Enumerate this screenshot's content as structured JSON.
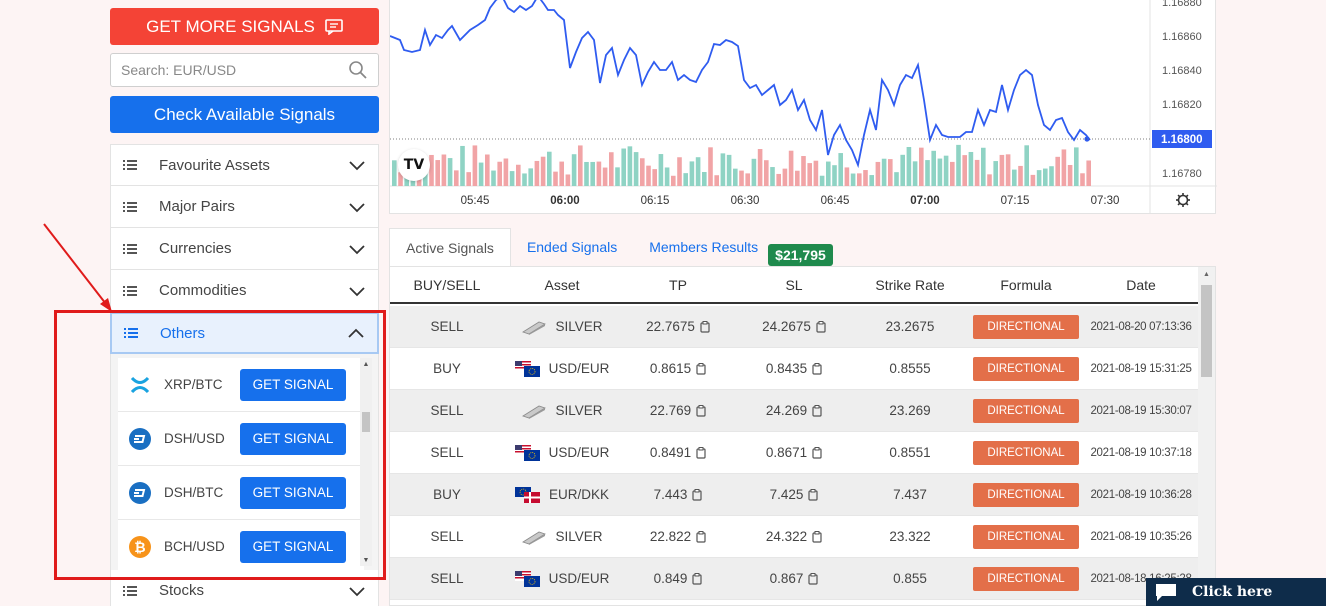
{
  "sidebar": {
    "get_more_label": "GET MORE SIGNALS",
    "search_placeholder": "Search: EUR/USD",
    "check_label": "Check Available Signals",
    "categories": [
      {
        "label": "Favourite Assets"
      },
      {
        "label": "Major Pairs"
      },
      {
        "label": "Currencies"
      },
      {
        "label": "Commodities"
      },
      {
        "label": "Others"
      },
      {
        "label": "Stocks"
      }
    ],
    "others_items": [
      {
        "pair": "XRP/BTC",
        "button": "GET SIGNAL",
        "icon": "xrp-icon"
      },
      {
        "pair": "DSH/USD",
        "button": "GET SIGNAL",
        "icon": "dash-icon"
      },
      {
        "pair": "DSH/BTC",
        "button": "GET SIGNAL",
        "icon": "dash-icon"
      },
      {
        "pair": "BCH/USD",
        "button": "GET SIGNAL",
        "icon": "bitcoin-icon"
      }
    ]
  },
  "chart": {
    "y_ticks": [
      "1.16860",
      "1.16840",
      "1.16820",
      "1.16800",
      "1.16780"
    ],
    "top_tick": "1.16880",
    "current_price": "1.16800",
    "x_ticks": [
      "05:45",
      "06:00",
      "06:15",
      "06:30",
      "06:45",
      "07:00",
      "07:15",
      "07:30"
    ],
    "logo": "TV",
    "colors": {
      "line": "#2f5cf0",
      "up": "#8fd3c4",
      "down": "#f1a4a6",
      "price_label": "#2f5cf0"
    }
  },
  "tabs": {
    "active": "Active Signals",
    "ended": "Ended Signals",
    "members": "Members Results",
    "badge": "$21,795"
  },
  "table": {
    "headers": [
      "BUY/SELL",
      "Asset",
      "TP",
      "SL",
      "Strike Rate",
      "Formula",
      "Date"
    ],
    "rows": [
      {
        "side": "SELL",
        "asset": "SILVER",
        "flag": "silver",
        "tp": "22.7675",
        "sl": "24.2675",
        "strike": "23.2675",
        "formula": "DIRECTIONAL",
        "date": "2021-08-20 07:13:36"
      },
      {
        "side": "BUY",
        "asset": "USD/EUR",
        "flag": "usd-eur",
        "tp": "0.8615",
        "sl": "0.8435",
        "strike": "0.8555",
        "formula": "DIRECTIONAL",
        "date": "2021-08-19 15:31:25"
      },
      {
        "side": "SELL",
        "asset": "SILVER",
        "flag": "silver",
        "tp": "22.769",
        "sl": "24.269",
        "strike": "23.269",
        "formula": "DIRECTIONAL",
        "date": "2021-08-19 15:30:07"
      },
      {
        "side": "SELL",
        "asset": "USD/EUR",
        "flag": "usd-eur",
        "tp": "0.8491",
        "sl": "0.8671",
        "strike": "0.8551",
        "formula": "DIRECTIONAL",
        "date": "2021-08-19 10:37:18"
      },
      {
        "side": "BUY",
        "asset": "EUR/DKK",
        "flag": "eur-dkk",
        "tp": "7.443",
        "sl": "7.425",
        "strike": "7.437",
        "formula": "DIRECTIONAL",
        "date": "2021-08-19 10:36:28"
      },
      {
        "side": "SELL",
        "asset": "SILVER",
        "flag": "silver",
        "tp": "22.822",
        "sl": "24.322",
        "strike": "23.322",
        "formula": "DIRECTIONAL",
        "date": "2021-08-19 10:35:26"
      },
      {
        "side": "SELL",
        "asset": "USD/EUR",
        "flag": "usd-eur",
        "tp": "0.849",
        "sl": "0.867",
        "strike": "0.855",
        "formula": "DIRECTIONAL",
        "date": "2021-08-18 16:25:28"
      }
    ]
  },
  "chat": {
    "label": "Click here"
  }
}
